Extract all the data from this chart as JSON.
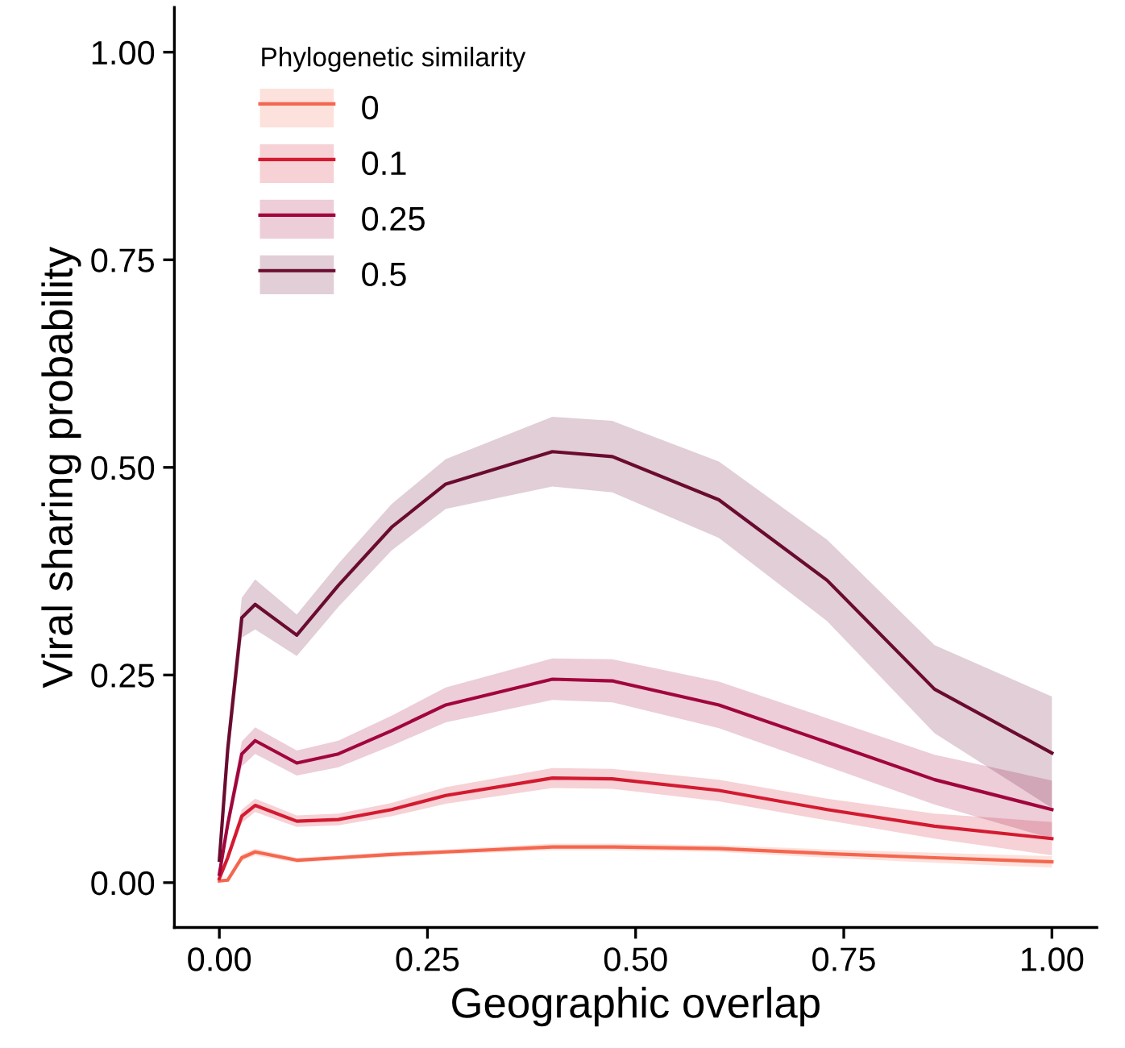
{
  "chart_data": {
    "type": "line",
    "xlabel": "Geographic overlap",
    "ylabel": "Viral sharing probability",
    "legend_title": "Phylogenetic similarity",
    "legend": "top left",
    "grid": false,
    "xlim": [
      -0.054,
      1.054
    ],
    "ylim": [
      -0.054,
      1.054
    ],
    "xticks": [
      {
        "value": 0,
        "label": "0.00"
      },
      {
        "value": 0.25,
        "label": "0.25"
      },
      {
        "value": 0.5,
        "label": "0.50"
      },
      {
        "value": 0.75,
        "label": "0.75"
      },
      {
        "value": 1,
        "label": "1.00"
      }
    ],
    "yticks": [
      {
        "value": 0,
        "label": "0.00"
      },
      {
        "value": 0.25,
        "label": "0.25"
      },
      {
        "value": 0.5,
        "label": "0.50"
      },
      {
        "value": 0.75,
        "label": "0.75"
      },
      {
        "value": 1,
        "label": "1.00"
      }
    ],
    "x": [
      0,
      0.01,
      0.027,
      0.043,
      0.093,
      0.143,
      0.207,
      0.272,
      0.4,
      0.472,
      0.6,
      0.73,
      0.859,
      1.0
    ],
    "series": [
      {
        "name": "0",
        "color": "#f4674f",
        "values": [
          0.002,
          0.003,
          0.03,
          0.037,
          0.027,
          0.03,
          0.034,
          0.037,
          0.043,
          0.043,
          0.041,
          0.035,
          0.03,
          0.025
        ],
        "lower": [
          0.0,
          0.001,
          0.026,
          0.033,
          0.024,
          0.027,
          0.031,
          0.034,
          0.039,
          0.039,
          0.037,
          0.03,
          0.024,
          0.018
        ],
        "upper": [
          0.004,
          0.005,
          0.034,
          0.041,
          0.03,
          0.033,
          0.037,
          0.04,
          0.047,
          0.047,
          0.045,
          0.04,
          0.036,
          0.032
        ]
      },
      {
        "name": "0.1",
        "color": "#d31a30",
        "values": [
          0.005,
          0.03,
          0.08,
          0.093,
          0.074,
          0.076,
          0.088,
          0.105,
          0.126,
          0.125,
          0.111,
          0.088,
          0.068,
          0.053
        ],
        "lower": [
          0.002,
          0.024,
          0.072,
          0.085,
          0.067,
          0.069,
          0.08,
          0.095,
          0.114,
          0.113,
          0.098,
          0.075,
          0.053,
          0.033
        ],
        "upper": [
          0.008,
          0.036,
          0.088,
          0.101,
          0.081,
          0.083,
          0.096,
          0.115,
          0.138,
          0.137,
          0.124,
          0.101,
          0.083,
          0.073
        ]
      },
      {
        "name": "0.25",
        "color": "#a1053d",
        "values": [
          0.01,
          0.07,
          0.155,
          0.171,
          0.144,
          0.155,
          0.183,
          0.214,
          0.245,
          0.243,
          0.214,
          0.169,
          0.124,
          0.088
        ],
        "lower": [
          0.006,
          0.06,
          0.14,
          0.155,
          0.129,
          0.139,
          0.165,
          0.193,
          0.22,
          0.217,
          0.186,
          0.14,
          0.094,
          0.053
        ],
        "upper": [
          0.014,
          0.08,
          0.17,
          0.187,
          0.159,
          0.171,
          0.201,
          0.235,
          0.27,
          0.269,
          0.242,
          0.198,
          0.154,
          0.123
        ]
      },
      {
        "name": "0.5",
        "color": "#6a0b30",
        "values": [
          0.027,
          0.16,
          0.319,
          0.335,
          0.298,
          0.358,
          0.428,
          0.48,
          0.519,
          0.513,
          0.461,
          0.364,
          0.233,
          0.156
        ],
        "lower": [
          0.02,
          0.14,
          0.295,
          0.305,
          0.273,
          0.332,
          0.4,
          0.45,
          0.477,
          0.47,
          0.415,
          0.315,
          0.18,
          0.09
        ],
        "upper": [
          0.034,
          0.18,
          0.343,
          0.365,
          0.323,
          0.384,
          0.456,
          0.51,
          0.561,
          0.556,
          0.507,
          0.413,
          0.286,
          0.224
        ]
      }
    ]
  }
}
